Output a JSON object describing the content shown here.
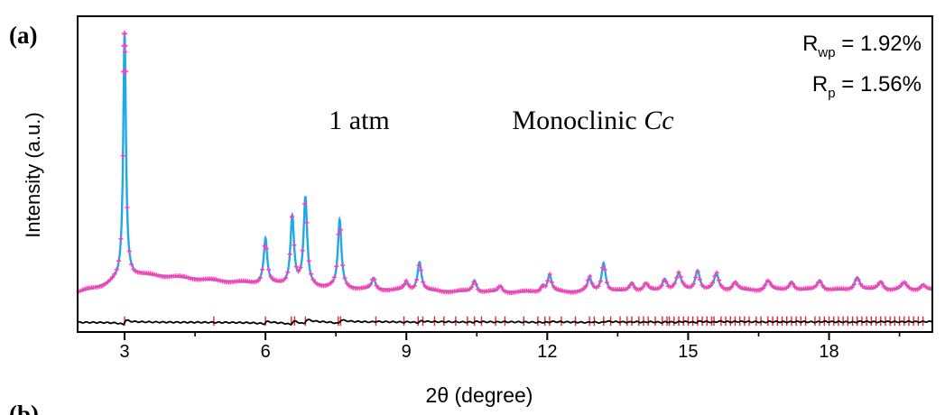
{
  "panel_labels": {
    "top": "(a)",
    "bottom": "(b)"
  },
  "chart_data": {
    "type": "line",
    "xlabel": "2θ (degree)",
    "ylabel": "Intensity (a.u.)",
    "xlim": [
      2,
      20.2
    ],
    "ylim": [
      -0.06,
      1.05
    ],
    "xticks": [
      3,
      6,
      9,
      12,
      15,
      18
    ],
    "grid": false,
    "annotations": {
      "pressure": "1 atm",
      "phase_prefix": "Monoclinic ",
      "phase_group": "Cc",
      "rwp_symbol": "R",
      "rwp_sub": "wp",
      "rwp_value": " = 1.92%",
      "rp_symbol": "R",
      "rp_sub": "p",
      "rp_value": " = 1.56%"
    },
    "background": [
      [
        2.0,
        0.08
      ],
      [
        2.5,
        0.1
      ],
      [
        2.9,
        0.125
      ],
      [
        3.3,
        0.14
      ],
      [
        4,
        0.135
      ],
      [
        5,
        0.12
      ],
      [
        6,
        0.108
      ],
      [
        7,
        0.098
      ],
      [
        8,
        0.09
      ],
      [
        9,
        0.085
      ],
      [
        10,
        0.082
      ],
      [
        11,
        0.08
      ],
      [
        12,
        0.08
      ],
      [
        13,
        0.081
      ],
      [
        14,
        0.082
      ],
      [
        15,
        0.083
      ],
      [
        16,
        0.084
      ],
      [
        17,
        0.085
      ],
      [
        18,
        0.086
      ],
      [
        19,
        0.086
      ],
      [
        20.2,
        0.086
      ]
    ],
    "peaks": [
      {
        "x": 3.0,
        "height": 0.86,
        "width": 0.035
      },
      {
        "x": 6.0,
        "height": 0.16,
        "width": 0.045
      },
      {
        "x": 6.57,
        "height": 0.24,
        "width": 0.045
      },
      {
        "x": 6.85,
        "height": 0.31,
        "width": 0.045
      },
      {
        "x": 7.58,
        "height": 0.24,
        "width": 0.045
      },
      {
        "x": 8.3,
        "height": 0.04,
        "width": 0.045
      },
      {
        "x": 9.0,
        "height": 0.03,
        "width": 0.05
      },
      {
        "x": 9.28,
        "height": 0.1,
        "width": 0.05
      },
      {
        "x": 10.45,
        "height": 0.04,
        "width": 0.05
      },
      {
        "x": 11.0,
        "height": 0.02,
        "width": 0.05
      },
      {
        "x": 11.9,
        "height": 0.02,
        "width": 0.05
      },
      {
        "x": 12.05,
        "height": 0.06,
        "width": 0.05
      },
      {
        "x": 12.9,
        "height": 0.05,
        "width": 0.05
      },
      {
        "x": 13.2,
        "height": 0.1,
        "width": 0.05
      },
      {
        "x": 13.8,
        "height": 0.03,
        "width": 0.06
      },
      {
        "x": 14.1,
        "height": 0.025,
        "width": 0.06
      },
      {
        "x": 14.5,
        "height": 0.04,
        "width": 0.06
      },
      {
        "x": 14.8,
        "height": 0.06,
        "width": 0.07
      },
      {
        "x": 15.2,
        "height": 0.07,
        "width": 0.06
      },
      {
        "x": 15.6,
        "height": 0.06,
        "width": 0.06
      },
      {
        "x": 16.0,
        "height": 0.03,
        "width": 0.07
      },
      {
        "x": 16.7,
        "height": 0.035,
        "width": 0.07
      },
      {
        "x": 17.2,
        "height": 0.03,
        "width": 0.07
      },
      {
        "x": 17.8,
        "height": 0.035,
        "width": 0.07
      },
      {
        "x": 18.6,
        "height": 0.045,
        "width": 0.07
      },
      {
        "x": 19.1,
        "height": 0.03,
        "width": 0.07
      },
      {
        "x": 19.6,
        "height": 0.025,
        "width": 0.07
      },
      {
        "x": 20.0,
        "height": 0.02,
        "width": 0.07
      }
    ],
    "bragg_positions": [
      3.0,
      4.9,
      6.0,
      6.55,
      6.62,
      6.85,
      7.55,
      7.6,
      8.35,
      8.95,
      9.25,
      9.35,
      9.6,
      9.8,
      10.05,
      10.3,
      10.45,
      10.6,
      10.9,
      11.1,
      11.5,
      11.8,
      11.95,
      12.05,
      12.3,
      12.6,
      12.9,
      13.0,
      13.2,
      13.35,
      13.55,
      13.7,
      13.8,
      13.95,
      14.05,
      14.15,
      14.3,
      14.45,
      14.55,
      14.6,
      14.7,
      14.8,
      14.9,
      15.0,
      15.1,
      15.2,
      15.3,
      15.4,
      15.5,
      15.55,
      15.7,
      15.8,
      15.9,
      16.0,
      16.1,
      16.2,
      16.3,
      16.45,
      16.55,
      16.7,
      16.8,
      16.9,
      17.0,
      17.1,
      17.2,
      17.3,
      17.4,
      17.5,
      17.7,
      17.8,
      17.9,
      18.0,
      18.1,
      18.2,
      18.3,
      18.4,
      18.5,
      18.6,
      18.7,
      18.8,
      18.9,
      19.0,
      19.1,
      19.2,
      19.3,
      19.4,
      19.5,
      19.6,
      19.7,
      19.8,
      19.9,
      20.0
    ],
    "difference_baseline": -0.025,
    "colors": {
      "observed": "#ff3fb4",
      "calculated": "#22a8e8",
      "bragg": "#e8222a",
      "difference": "#000000"
    }
  }
}
